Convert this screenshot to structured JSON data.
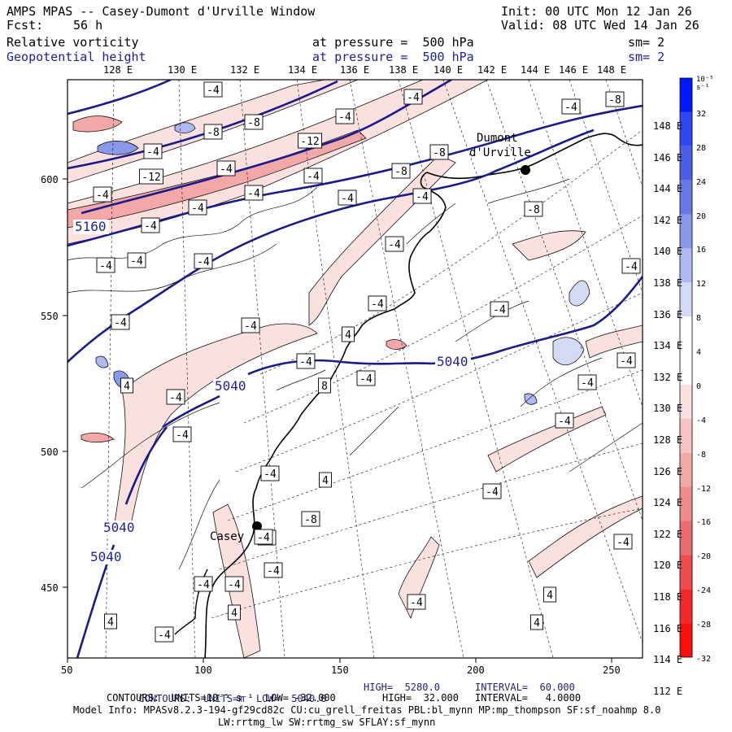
{
  "header": {
    "title": "AMPS MPAS -- Casey-Dumont d'Urville Window",
    "init": "Init: 00 UTC Mon 12 Jan 26",
    "fcst_label": "Fcst:",
    "fcst_value": "56 h",
    "valid": "Valid: 08 UTC Wed 14 Jan 26",
    "field1_name": "Relative vorticity",
    "field1_level": "at pressure =  500 hPa",
    "field1_sm": "sm= 2",
    "field2_name": "Geopotential height",
    "field2_level": "at pressure =  500 hPa",
    "field2_sm": "sm= 2"
  },
  "axes": {
    "top_lon_labels": [
      "128 E",
      "130 E",
      "132 E",
      "134 E",
      "136 E",
      "138 E",
      "140 E",
      "142 E",
      "144 E",
      "146 E",
      "148 E"
    ],
    "right_lat_labels": [
      "148 E",
      "146 E",
      "144 E",
      "142 E",
      "140 E",
      "138 E",
      "136 E",
      "134 E",
      "132 E",
      "130 E",
      "128 E",
      "126 E",
      "124 E",
      "122 E",
      "120 E",
      "118 E",
      "116 E",
      "114 E",
      "112 E"
    ],
    "bottom_ticks": [
      "50",
      "100",
      "150",
      "200",
      "250"
    ],
    "left_ticks": [
      "600",
      "550",
      "500",
      "450"
    ]
  },
  "stations": {
    "dumont": "Dumont\nd'Urville",
    "casey": "Casey"
  },
  "height_labels": [
    "5160",
    "5040",
    "5040",
    "5040",
    "5040"
  ],
  "vort_labels": [
    "-4",
    "-4",
    "-8",
    "-4",
    "-8",
    "-4",
    "-8",
    "-4",
    "-12",
    "-8",
    "-4",
    "-12",
    "-8",
    "-4",
    "-4",
    "-4",
    "-4",
    "-4",
    "-4",
    "-8",
    "-4",
    "-4",
    "-4",
    "-4",
    "-4",
    "-4",
    "-4",
    "-4",
    "-4",
    "-4",
    "4",
    "-4",
    "-4",
    "-4",
    "8",
    "4",
    "-4",
    "-4",
    "-4",
    "-4",
    "-4",
    "4",
    "-4",
    "-8",
    "-4",
    "-4",
    "-4",
    "-4",
    "-4",
    "4",
    "4",
    "4",
    "4",
    "-4",
    "-4",
    "-4",
    "-4",
    "-4"
  ],
  "colorbar": {
    "unit_label": "10⁻⁵ s⁻¹",
    "labels": [
      "32",
      "28",
      "24",
      "20",
      "16",
      "12",
      "8",
      "4",
      "0",
      "-4",
      "-8",
      "-12",
      "-16",
      "-20",
      "-24",
      "-28",
      "-32"
    ],
    "colors": [
      "#0018ff",
      "#2f47f2",
      "#4a5fe6",
      "#6779e6",
      "#8a98ea",
      "#b0b8f0",
      "#d4d9f6",
      "#ffffff",
      "#ffffff",
      "#fbe0e0",
      "#f6c4c4",
      "#f2a8a8",
      "#ee8c8c",
      "#ea6c6c",
      "#ee4c4c",
      "#f42a2a",
      "#ff0c0c"
    ]
  },
  "footer": {
    "line1_a": "CONTOURS:  UNITS=m  LOW=  5040.0",
    "line1_b": "HIGH=  5280.0",
    "line1_c": "INTERVAL=  60.000",
    "line2_a": "CONTOURS:  UNITS=10⁻⁵ s⁻¹  LOW= -32.000",
    "line2_b": "HIGH=  32.000",
    "line2_c": "INTERVAL=   4.0000",
    "line3": "Model Info: MPASv8.2.3-194-gf29cd82c CU:cu_grell_freitas PBL:bl_mynn MP:mp_thompson SF:sf_noahmp 8.0",
    "line4": "LW:rrtmg_lw SW:rrtmg_sw SFLAY:sf_mynn"
  }
}
